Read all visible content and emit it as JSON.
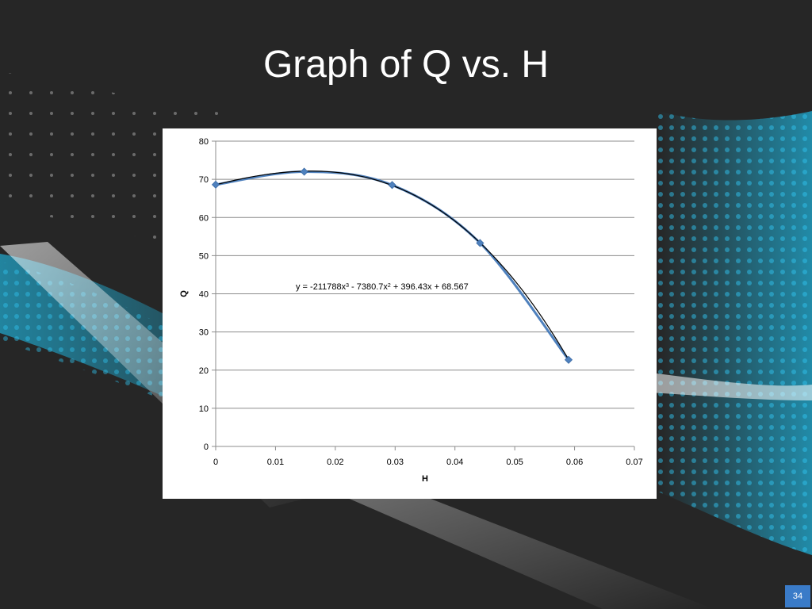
{
  "slide": {
    "title": "Graph of Q vs. H",
    "page_number": "34"
  },
  "colors": {
    "background": "#262626",
    "accent_cyan": "#1fb6e0",
    "series_line": "#4f81bd",
    "trendline": "#000000",
    "badge": "#3a7bc8"
  },
  "chart_data": {
    "type": "scatter",
    "title": "",
    "xlabel": "H",
    "ylabel": "Q",
    "xlim": [
      0,
      0.07
    ],
    "ylim": [
      0,
      80
    ],
    "x_ticks": [
      0,
      0.01,
      0.02,
      0.03,
      0.04,
      0.05,
      0.06,
      0.07
    ],
    "x_tick_labels": [
      "0",
      "0.01",
      "0.02",
      "0.03",
      "0.04",
      "0.05",
      "0.06",
      "0.07"
    ],
    "y_ticks": [
      0,
      10,
      20,
      30,
      40,
      50,
      60,
      70,
      80
    ],
    "y_tick_labels": [
      "0",
      "10",
      "20",
      "30",
      "40",
      "50",
      "60",
      "70",
      "80"
    ],
    "grid": "horizontal",
    "legend": "none",
    "series": [
      {
        "x": [
          0,
          0.0148,
          0.0295,
          0.0442,
          0.059
        ],
        "values": [
          68.6,
          72.0,
          68.5,
          53.3,
          22.7
        ],
        "marker": "diamond",
        "connect": "smooth"
      }
    ],
    "trendline": {
      "type": "polynomial",
      "order": 3,
      "coefficients": [
        -211788,
        -7380.7,
        396.43,
        68.567
      ],
      "x_range": [
        0,
        0.059
      ],
      "equation_parts": {
        "lead": "y = -211788x",
        "exp1": "3",
        "mid": " - 7380.7x",
        "exp2": "2",
        "tail": " + 396.43x + 68.567"
      }
    }
  }
}
